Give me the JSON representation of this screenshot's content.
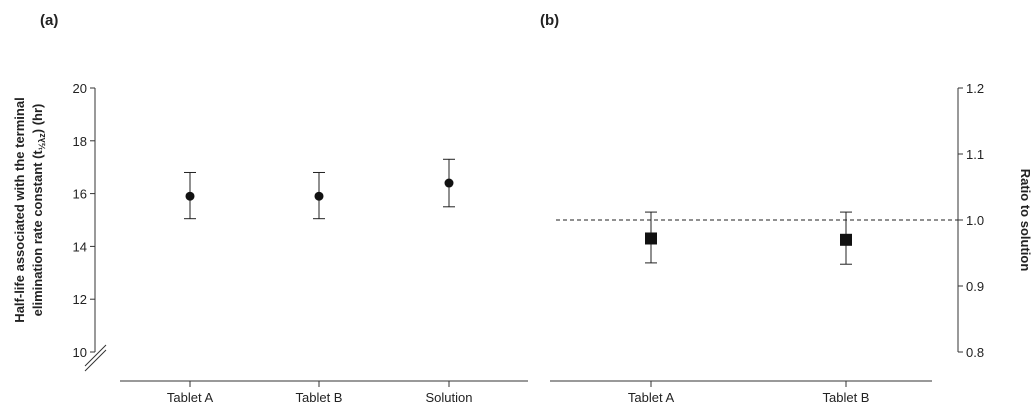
{
  "chart_data": [
    {
      "panel": "(a)",
      "type": "scatter",
      "categories": [
        "Tablet A",
        "Tablet B",
        "Solution"
      ],
      "values": [
        15.9,
        15.9,
        16.4
      ],
      "error_low": [
        15.05,
        15.05,
        15.5
      ],
      "error_high": [
        16.8,
        16.8,
        17.3
      ],
      "ylabel_line1": "Half-life associated with the terminal",
      "ylabel_line2_prefix": "elimination rate constant (t",
      "ylabel_subscript": "½λz",
      "ylabel_line2_suffix": ") (hr)",
      "ylim": [
        10,
        20
      ],
      "yticks": [
        "10",
        "12",
        "14",
        "16",
        "18",
        "20"
      ],
      "axis_break": true,
      "marker": "circle",
      "grid": false
    },
    {
      "panel": "(b)",
      "type": "scatter",
      "categories": [
        "Tablet A",
        "Tablet B"
      ],
      "values": [
        0.972,
        0.97
      ],
      "error_low": [
        0.935,
        0.933
      ],
      "error_high": [
        1.012,
        1.012
      ],
      "ylabel": "Ratio to solution",
      "ylim": [
        0.8,
        1.2
      ],
      "yticks": [
        "0.8",
        "0.9",
        "1.0",
        "1.1",
        "1.2"
      ],
      "yaxis_side": "right",
      "reference_line": 1.0,
      "marker": "square",
      "grid": false
    }
  ]
}
